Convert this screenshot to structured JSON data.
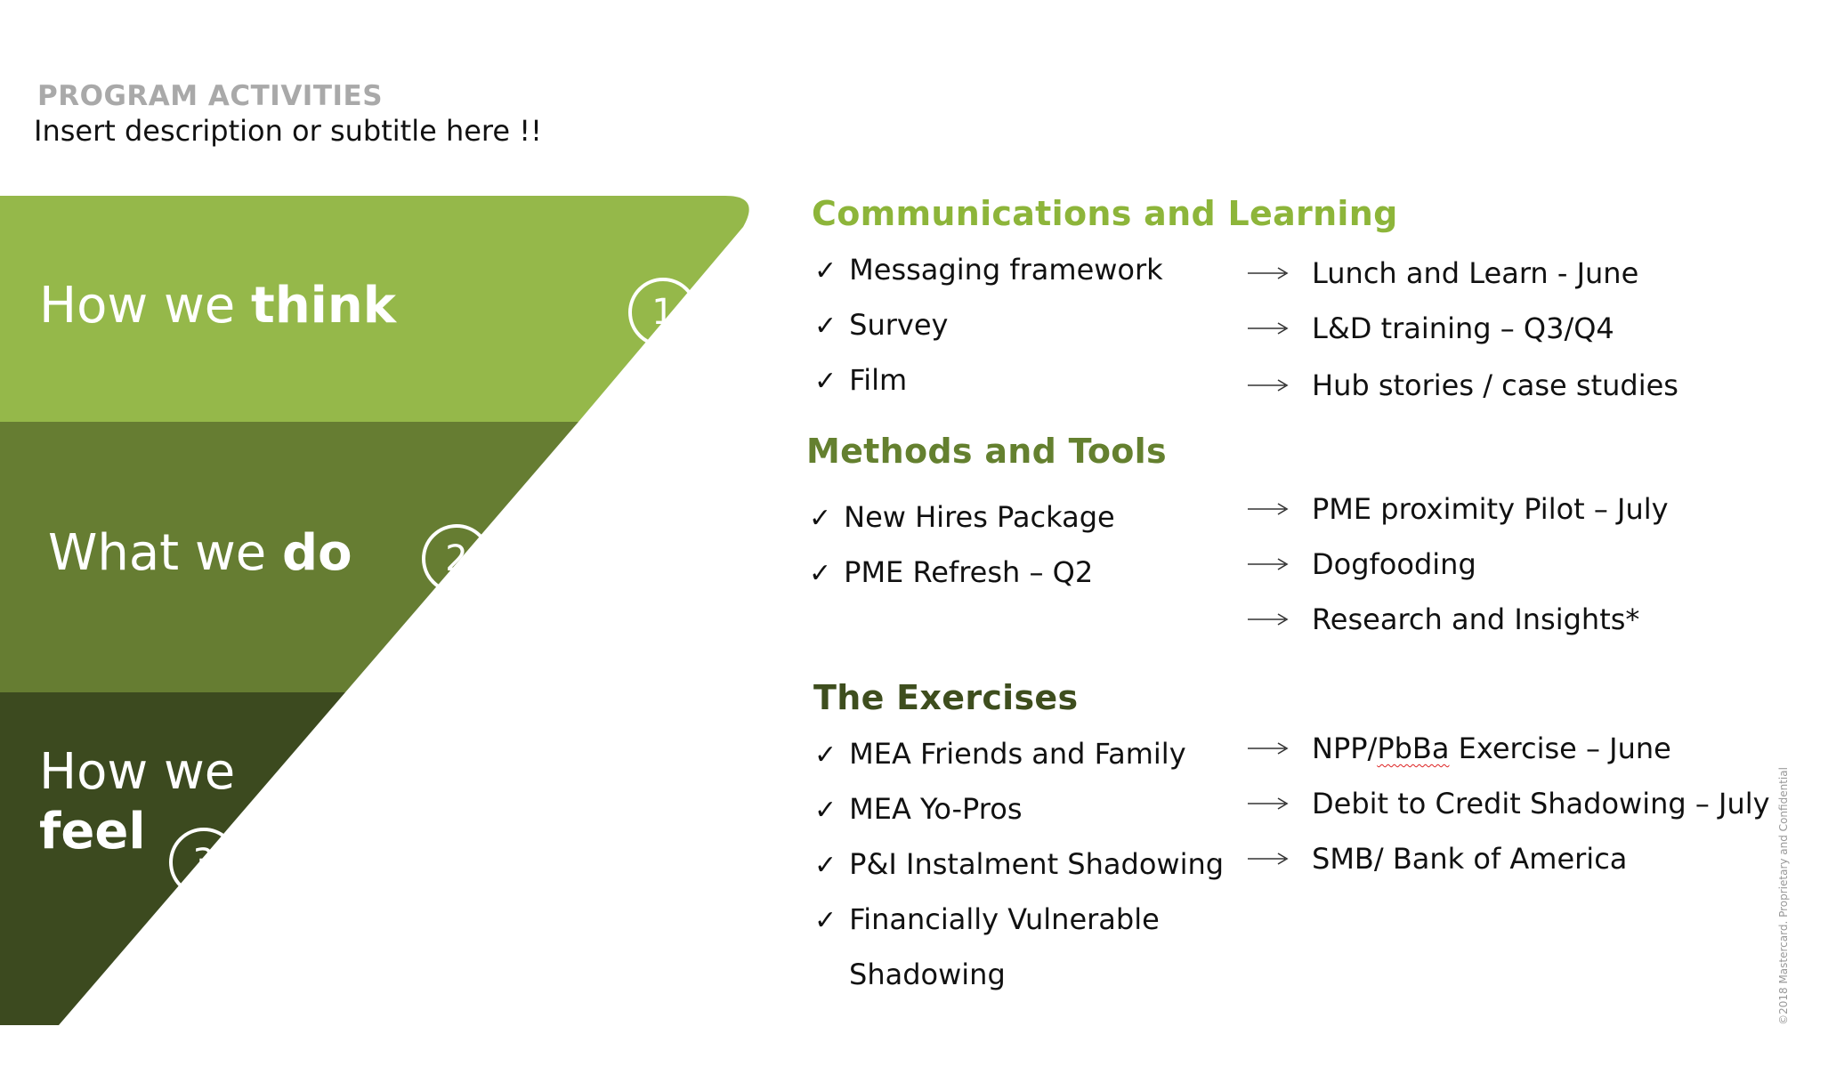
{
  "header": {
    "kicker": "PROGRAM ACTIVITIES",
    "subtitle": "Insert description or subtitle here !!"
  },
  "colors": {
    "stage1": "#95b84a",
    "stage2": "#667d32",
    "stage3": "#3c4a1f",
    "title_light": "#8db53a",
    "title_mid": "#64802f",
    "title_dark": "#3e4e1e"
  },
  "stages": [
    {
      "label_prefix": "How we",
      "label_bold": "think",
      "number": "1"
    },
    {
      "label_prefix": "What we",
      "label_bold": "do",
      "number": "2"
    },
    {
      "label_prefix": "How we",
      "label_bold": "feel",
      "number": "3"
    }
  ],
  "sections": [
    {
      "title": "Communications and Learning",
      "done": [
        "Messaging framework",
        "Survey",
        "Film"
      ],
      "next": [
        "Lunch and Learn - June",
        "L&D training – Q3/Q4",
        "Hub stories / case studies"
      ]
    },
    {
      "title": "Methods and Tools",
      "done": [
        "New Hires Package",
        "PME Refresh – Q2"
      ],
      "next": [
        "PME proximity Pilot – July",
        "Dogfooding",
        "Research and Insights*"
      ]
    },
    {
      "title": "The Exercises",
      "done": [
        "MEA Friends and Family",
        "MEA Yo-Pros",
        "P&I Instalment Shadowing",
        "Financially Vulnerable",
        "Shadowing"
      ],
      "next_first_prefix": "NPP/",
      "next_first_marked": "PbBa",
      "next_first_suffix": " Exercise – June",
      "next": [
        "Debit to Credit Shadowing – July",
        "SMB/ Bank of America"
      ]
    }
  ],
  "icons": {
    "check": "checkmark-icon",
    "arrow": "long-arrow-right-icon"
  },
  "check_glyph": "✓",
  "side_note": "©2018 Mastercard. Proprietary and Confidential"
}
